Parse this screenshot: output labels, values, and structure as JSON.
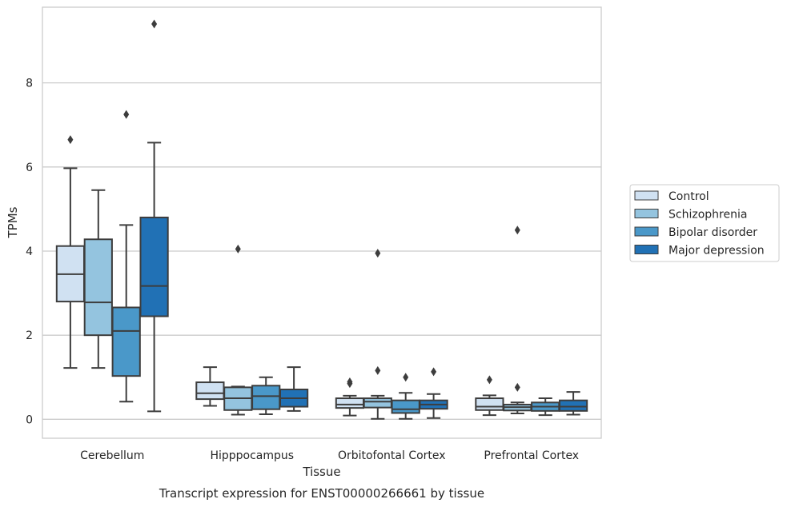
{
  "chart_data": {
    "type": "box",
    "title": "Transcript expression for ENST00000266661 by tissue",
    "xlabel": "Tissue",
    "ylabel": "TPMs",
    "ylim": [
      -0.45,
      9.8
    ],
    "yticks": [
      0,
      2,
      4,
      6,
      8
    ],
    "ytick_labels": [
      "0",
      "2",
      "4",
      "6",
      "8"
    ],
    "grid": "horizontal",
    "legend_position": "right",
    "categories": [
      "Cerebellum",
      "Hipppocampus",
      "Orbitofontal Cortex",
      "Prefrontal Cortex"
    ],
    "series": [
      {
        "name": "Control",
        "color": "#d0e1f2",
        "boxes": [
          {
            "whislo": 1.22,
            "q1": 2.8,
            "med": 3.45,
            "q3": 4.12,
            "whishi": 5.97,
            "fliers": [
              6.65
            ]
          },
          {
            "whislo": 0.32,
            "q1": 0.48,
            "med": 0.62,
            "q3": 0.88,
            "whishi": 1.24,
            "fliers": []
          },
          {
            "whislo": 0.09,
            "q1": 0.27,
            "med": 0.35,
            "q3": 0.5,
            "whishi": 0.56,
            "fliers": [
              0.85,
              0.89
            ]
          },
          {
            "whislo": 0.1,
            "q1": 0.22,
            "med": 0.3,
            "q3": 0.5,
            "whishi": 0.57,
            "fliers": [
              0.94
            ]
          }
        ]
      },
      {
        "name": "Schizophrenia",
        "color": "#94c4df",
        "boxes": [
          {
            "whislo": 1.22,
            "q1": 2.0,
            "med": 2.78,
            "q3": 4.28,
            "whishi": 5.45,
            "fliers": []
          },
          {
            "whislo": 0.11,
            "q1": 0.22,
            "med": 0.5,
            "q3": 0.76,
            "whishi": 0.78,
            "fliers": [
              4.05
            ]
          },
          {
            "whislo": 0.01,
            "q1": 0.28,
            "med": 0.42,
            "q3": 0.5,
            "whishi": 0.56,
            "fliers": [
              1.16,
              3.95
            ]
          },
          {
            "whislo": 0.14,
            "q1": 0.21,
            "med": 0.29,
            "q3": 0.35,
            "whishi": 0.4,
            "fliers": [
              0.76,
              4.5
            ]
          }
        ]
      },
      {
        "name": "Bipolar disorder",
        "color": "#4a98c9",
        "boxes": [
          {
            "whislo": 0.42,
            "q1": 1.03,
            "med": 2.1,
            "q3": 2.66,
            "whishi": 4.62,
            "fliers": [
              7.25
            ]
          },
          {
            "whislo": 0.12,
            "q1": 0.24,
            "med": 0.55,
            "q3": 0.8,
            "whishi": 1.0,
            "fliers": []
          },
          {
            "whislo": 0.01,
            "q1": 0.15,
            "med": 0.24,
            "q3": 0.45,
            "whishi": 0.63,
            "fliers": [
              1.0
            ]
          },
          {
            "whislo": 0.1,
            "q1": 0.2,
            "med": 0.3,
            "q3": 0.4,
            "whishi": 0.5,
            "fliers": []
          }
        ]
      },
      {
        "name": "Major depression",
        "color": "#2171b5",
        "boxes": [
          {
            "whislo": 0.19,
            "q1": 2.45,
            "med": 3.17,
            "q3": 4.8,
            "whishi": 6.58,
            "fliers": [
              9.4
            ]
          },
          {
            "whislo": 0.2,
            "q1": 0.3,
            "med": 0.5,
            "q3": 0.71,
            "whishi": 1.24,
            "fliers": []
          },
          {
            "whislo": 0.03,
            "q1": 0.25,
            "med": 0.35,
            "q3": 0.45,
            "whishi": 0.6,
            "fliers": [
              1.13
            ]
          },
          {
            "whislo": 0.11,
            "q1": 0.2,
            "med": 0.3,
            "q3": 0.45,
            "whishi": 0.65,
            "fliers": []
          }
        ]
      }
    ]
  }
}
